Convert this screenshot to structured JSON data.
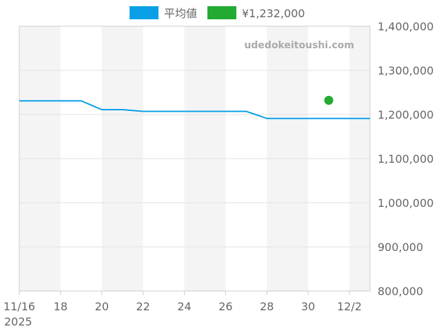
{
  "colors": {
    "series_avg": "#0aa0e6",
    "series_price": "#22aa33",
    "band": "#f4f4f4",
    "grid": "#e2e2e2",
    "axis": "#cccccc"
  },
  "watermark": "udedokeitoushi.com",
  "chart_data": {
    "type": "line",
    "legend_position": "top-center",
    "grid": true,
    "alternating_bands": true,
    "series": [
      {
        "name": "平均値",
        "type": "line",
        "points": [
          {
            "x": "2025-11-16",
            "y": 1231000
          },
          {
            "x": "2025-11-19",
            "y": 1231000
          },
          {
            "x": "2025-11-20",
            "y": 1211000
          },
          {
            "x": "2025-11-21",
            "y": 1211000
          },
          {
            "x": "2025-11-22",
            "y": 1207000
          },
          {
            "x": "2025-11-27",
            "y": 1207000
          },
          {
            "x": "2025-11-28",
            "y": 1191000
          },
          {
            "x": "2025-12-03",
            "y": 1191000
          }
        ]
      },
      {
        "name": "¥1,232,000",
        "type": "scatter",
        "points": [
          {
            "x": "2025-12-01",
            "y": 1232000
          }
        ]
      }
    ],
    "x_axis": {
      "range": [
        "2025-11-16",
        "2025-12-03"
      ],
      "ticks": [
        {
          "date": "2025-11-16",
          "label": "11/16"
        },
        {
          "date": "2025-11-18",
          "label": "18"
        },
        {
          "date": "2025-11-20",
          "label": "20"
        },
        {
          "date": "2025-11-22",
          "label": "22"
        },
        {
          "date": "2025-11-24",
          "label": "24"
        },
        {
          "date": "2025-11-26",
          "label": "26"
        },
        {
          "date": "2025-11-28",
          "label": "28"
        },
        {
          "date": "2025-11-30",
          "label": "30"
        },
        {
          "date": "2025-12-02",
          "label": "12/2"
        }
      ],
      "sublabel": "2025"
    },
    "y_axis": {
      "position": "right",
      "ylim": [
        800000,
        1400000
      ],
      "ticks": [
        {
          "value": 1400000,
          "label": "1,400,000"
        },
        {
          "value": 1300000,
          "label": "1,300,000"
        },
        {
          "value": 1200000,
          "label": "1,200,000"
        },
        {
          "value": 1100000,
          "label": "1,100,000"
        },
        {
          "value": 1000000,
          "label": "1,000,000"
        },
        {
          "value": 900000,
          "label": "900,000"
        },
        {
          "value": 800000,
          "label": "800,000"
        }
      ]
    }
  }
}
